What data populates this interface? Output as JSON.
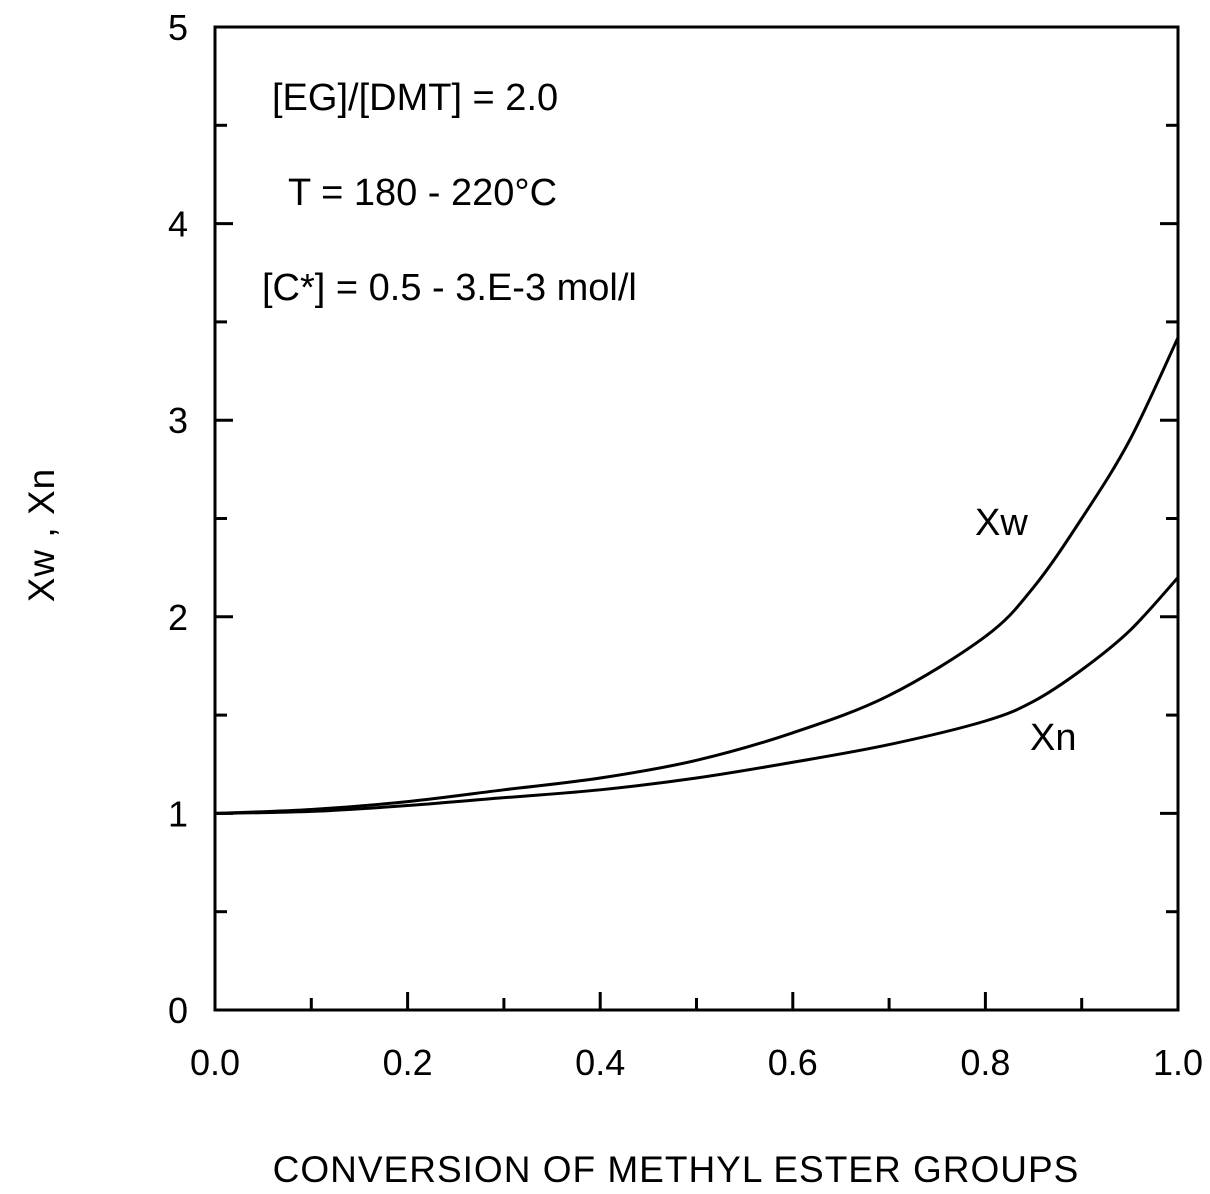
{
  "chart_data": {
    "type": "line",
    "xlabel": "CONVERSION OF METHYL ESTER GROUPS",
    "ylabel": "Xw , Xn",
    "xlim": [
      0.0,
      1.0
    ],
    "ylim": [
      0,
      5
    ],
    "grid": false,
    "x_major_ticks": [
      0.0,
      0.2,
      0.4,
      0.6,
      0.8,
      1.0
    ],
    "x_tick_labels": [
      "0.0",
      "0.2",
      "0.4",
      "0.6",
      "0.8",
      "1.0"
    ],
    "x_minor_ticks": [
      0.1,
      0.3,
      0.5,
      0.7,
      0.9
    ],
    "y_major_ticks": [
      0,
      1,
      2,
      3,
      4,
      5
    ],
    "y_tick_labels": [
      "0",
      "1",
      "2",
      "3",
      "4",
      "5"
    ],
    "y_minor_ticks": [
      0.5,
      1.5,
      2.5,
      3.5,
      4.5
    ],
    "annotations": [
      {
        "text": "[EG]/[DMT] = 2.0"
      },
      {
        "text": "T = 180 - 220°C"
      },
      {
        "text": "[C*] = 0.5 - 3.E-3 mol/l"
      }
    ],
    "series": [
      {
        "name": "Xw",
        "x": [
          0.0,
          0.1,
          0.2,
          0.3,
          0.4,
          0.5,
          0.6,
          0.7,
          0.8,
          0.85,
          0.9,
          0.95,
          1.0
        ],
        "y": [
          1.0,
          1.02,
          1.06,
          1.12,
          1.18,
          1.27,
          1.41,
          1.6,
          1.9,
          2.15,
          2.5,
          2.9,
          3.42
        ]
      },
      {
        "name": "Xn",
        "x": [
          0.0,
          0.1,
          0.2,
          0.3,
          0.4,
          0.5,
          0.6,
          0.7,
          0.8,
          0.85,
          0.9,
          0.95,
          1.0
        ],
        "y": [
          1.0,
          1.01,
          1.04,
          1.08,
          1.12,
          1.18,
          1.26,
          1.35,
          1.47,
          1.57,
          1.73,
          1.93,
          2.2
        ]
      }
    ]
  }
}
